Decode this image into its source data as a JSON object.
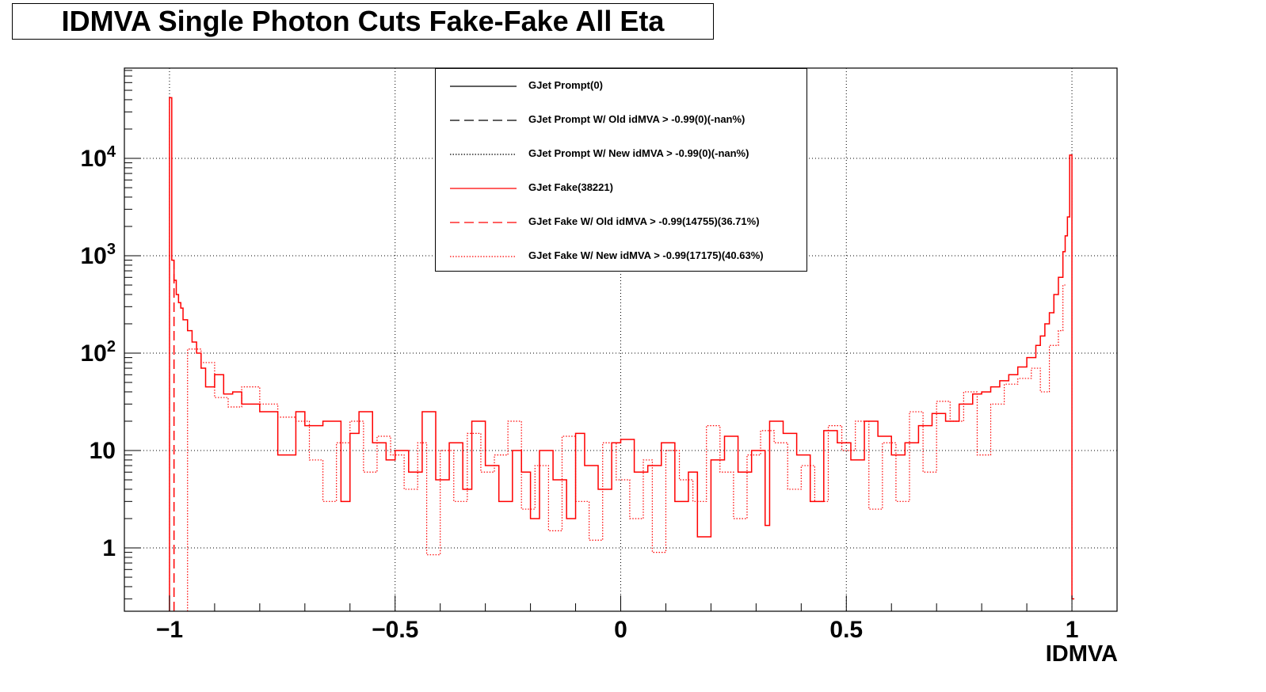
{
  "title": "IDMVA Single Photon Cuts Fake-Fake All Eta",
  "colors": {
    "prompt": "#000000",
    "fake": "#ff0000",
    "frame": "#000000",
    "grid": "#000000"
  },
  "legend": {
    "placement": "top-center",
    "entries": [
      {
        "label": "GJet Prompt(0)",
        "color": "#000000",
        "style": "solid"
      },
      {
        "label": "GJet Prompt W/ Old idMVA > -0.99(0)(-nan%)",
        "color": "#000000",
        "style": "dashed"
      },
      {
        "label": "GJet Prompt W/ New idMVA > -0.99(0)(-nan%)",
        "color": "#000000",
        "style": "dotted"
      },
      {
        "label": "GJet Fake(38221)",
        "color": "#ff0000",
        "style": "solid"
      },
      {
        "label": "GJet Fake W/ Old idMVA > -0.99(14755)(36.71%)",
        "color": "#ff0000",
        "style": "dashed"
      },
      {
        "label": "GJet Fake W/ New idMVA > -0.99(17175)(40.63%)",
        "color": "#ff0000",
        "style": "dotted"
      }
    ]
  },
  "chart_data": {
    "type": "line",
    "title": "IDMVA Single Photon Cuts Fake-Fake All Eta",
    "xlabel": "IDMVA",
    "ylabel": "",
    "xlim": [
      -1.1,
      1.1
    ],
    "ylim": [
      0.2,
      80000
    ],
    "yscale": "log",
    "grid": true,
    "x_ticks": [
      -1,
      -0.5,
      0,
      0.5,
      1
    ],
    "x_tick_labels": [
      "−1",
      "−0.5",
      "0",
      "0.5",
      "1"
    ],
    "y_ticks": [
      1,
      10,
      100,
      1000,
      10000
    ],
    "y_tick_labels": [
      {
        "base": "1",
        "exp": ""
      },
      {
        "base": "10",
        "exp": ""
      },
      {
        "base": "10",
        "exp": "2"
      },
      {
        "base": "10",
        "exp": "3"
      },
      {
        "base": "10",
        "exp": "4"
      }
    ],
    "series": [
      {
        "name": "GJet Prompt(0)",
        "color": "#000000",
        "style": "solid",
        "x": [],
        "y": []
      },
      {
        "name": "GJet Prompt W/ Old idMVA > -0.99(0)(-nan%)",
        "color": "#000000",
        "style": "dashed",
        "x": [],
        "y": []
      },
      {
        "name": "GJet Prompt W/ New idMVA > -0.99(0)(-nan%)",
        "color": "#000000",
        "style": "dotted",
        "x": [],
        "y": []
      },
      {
        "name": "GJet Fake(38221)",
        "color": "#ff0000",
        "style": "solid",
        "x": [
          -1.0,
          -0.995,
          -0.99,
          -0.985,
          -0.98,
          -0.975,
          -0.97,
          -0.96,
          -0.95,
          -0.94,
          -0.93,
          -0.92,
          -0.9,
          -0.88,
          -0.86,
          -0.84,
          -0.8,
          -0.76,
          -0.72,
          -0.7,
          -0.66,
          -0.62,
          -0.6,
          -0.58,
          -0.55,
          -0.52,
          -0.5,
          -0.47,
          -0.44,
          -0.41,
          -0.38,
          -0.35,
          -0.33,
          -0.3,
          -0.27,
          -0.24,
          -0.22,
          -0.2,
          -0.18,
          -0.15,
          -0.12,
          -0.1,
          -0.08,
          -0.05,
          -0.02,
          0.0,
          0.03,
          0.06,
          0.09,
          0.12,
          0.15,
          0.17,
          0.2,
          0.23,
          0.26,
          0.29,
          0.32,
          0.33,
          0.36,
          0.39,
          0.42,
          0.45,
          0.48,
          0.51,
          0.54,
          0.57,
          0.6,
          0.63,
          0.66,
          0.69,
          0.72,
          0.75,
          0.78,
          0.8,
          0.82,
          0.84,
          0.86,
          0.88,
          0.9,
          0.92,
          0.93,
          0.94,
          0.95,
          0.96,
          0.97,
          0.98,
          0.985,
          0.99,
          0.995,
          1.0
        ],
        "y": [
          42000,
          900,
          560,
          400,
          330,
          290,
          220,
          170,
          130,
          100,
          70,
          45,
          60,
          38,
          40,
          30,
          25,
          9,
          25,
          18,
          20,
          3,
          15,
          25,
          12,
          8,
          10,
          6,
          25,
          5,
          12,
          4,
          20,
          7,
          3,
          10,
          6,
          2,
          10,
          5,
          2,
          15,
          7,
          4,
          12,
          13,
          6,
          7,
          12,
          3,
          6,
          1.3,
          8,
          14,
          6,
          10,
          1.7,
          20,
          15,
          9,
          3,
          16,
          12,
          8,
          20,
          14,
          9,
          12,
          18,
          24,
          20,
          30,
          38,
          40,
          45,
          52,
          60,
          72,
          90,
          120,
          150,
          200,
          260,
          400,
          600,
          1100,
          1600,
          2500,
          10800,
          0.3
        ]
      },
      {
        "name": "GJet Fake W/ Old idMVA > -0.99(14755)(36.71%)",
        "color": "#ff0000",
        "style": "dashed",
        "x": [
          -0.99,
          -0.99
        ],
        "y": [
          0.2,
          900
        ]
      },
      {
        "name": "GJet Fake W/ New idMVA > -0.99(17175)(40.63%)",
        "color": "#ff0000",
        "style": "dotted",
        "x": [
          -0.96,
          -0.93,
          -0.9,
          -0.87,
          -0.84,
          -0.8,
          -0.76,
          -0.72,
          -0.69,
          -0.66,
          -0.63,
          -0.6,
          -0.57,
          -0.54,
          -0.51,
          -0.48,
          -0.45,
          -0.43,
          -0.4,
          -0.37,
          -0.34,
          -0.31,
          -0.28,
          -0.25,
          -0.22,
          -0.19,
          -0.16,
          -0.13,
          -0.1,
          -0.07,
          -0.04,
          -0.01,
          0.02,
          0.05,
          0.07,
          0.1,
          0.13,
          0.16,
          0.19,
          0.22,
          0.25,
          0.28,
          0.31,
          0.34,
          0.37,
          0.4,
          0.43,
          0.46,
          0.49,
          0.52,
          0.55,
          0.58,
          0.61,
          0.64,
          0.67,
          0.7,
          0.73,
          0.76,
          0.79,
          0.82,
          0.85,
          0.88,
          0.91,
          0.93,
          0.95,
          0.97,
          0.98
        ],
        "y": [
          110,
          80,
          35,
          28,
          45,
          30,
          22,
          20,
          8,
          3,
          12,
          20,
          6,
          14,
          9,
          4,
          12,
          0.85,
          10,
          3,
          15,
          6,
          9,
          20,
          2.5,
          7,
          1.5,
          14,
          3,
          1.2,
          12,
          5,
          2,
          8,
          0.9,
          10,
          5,
          3,
          18,
          6,
          2,
          9,
          16,
          12,
          4,
          7,
          3,
          18,
          10,
          20,
          2.5,
          12,
          3,
          25,
          6,
          32,
          20,
          40,
          9,
          30,
          48,
          55,
          70,
          40,
          120,
          170,
          500
        ]
      }
    ]
  }
}
